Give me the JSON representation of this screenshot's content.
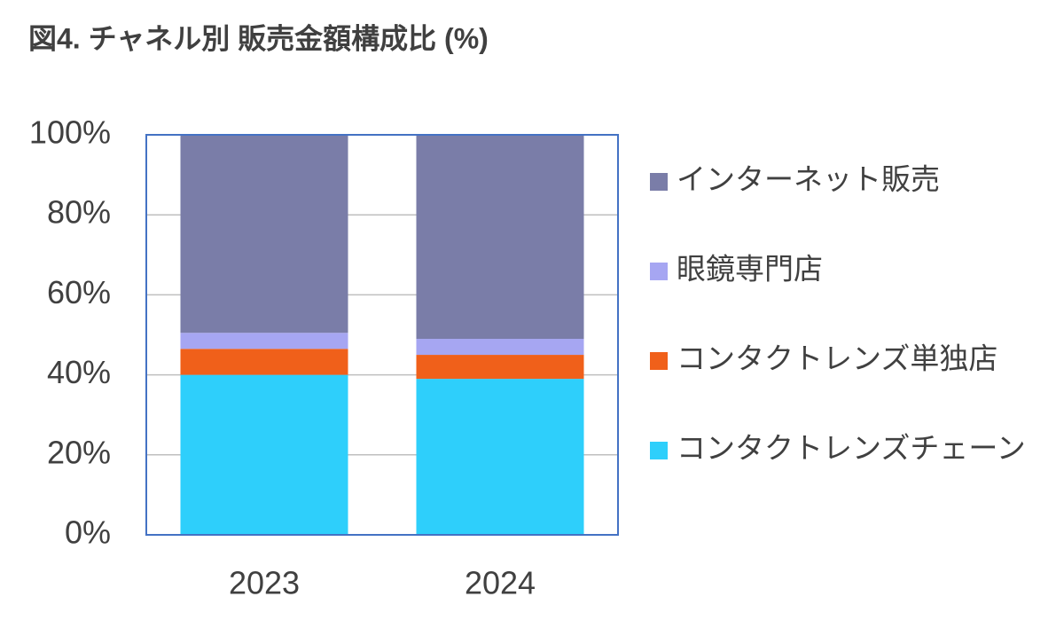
{
  "chart_data": {
    "type": "stacked_bar",
    "title": "図4. チャネル別 販売金額構成比 (%)",
    "categories": [
      "2023",
      "2024"
    ],
    "series": [
      {
        "name": "コンタクトレンズチェーン",
        "color": "#2ecffb",
        "values": [
          40,
          39
        ]
      },
      {
        "name": "コンタクトレンズ単独店",
        "color": "#f0601a",
        "values": [
          6.5,
          6
        ]
      },
      {
        "name": "眼鏡専門店",
        "color": "#a6a6f2",
        "values": [
          4,
          4
        ]
      },
      {
        "name": "インターネット販売",
        "color": "#7a7da8",
        "values": [
          49.5,
          51
        ]
      }
    ],
    "ylim": [
      0,
      100
    ],
    "yticks": [
      {
        "value": 0,
        "label": "0%"
      },
      {
        "value": 20,
        "label": "20%"
      },
      {
        "value": 40,
        "label": "40%"
      },
      {
        "value": 60,
        "label": "60%"
      },
      {
        "value": 80,
        "label": "80%"
      },
      {
        "value": 100,
        "label": "100%"
      }
    ],
    "grid": true,
    "legend": "right"
  }
}
